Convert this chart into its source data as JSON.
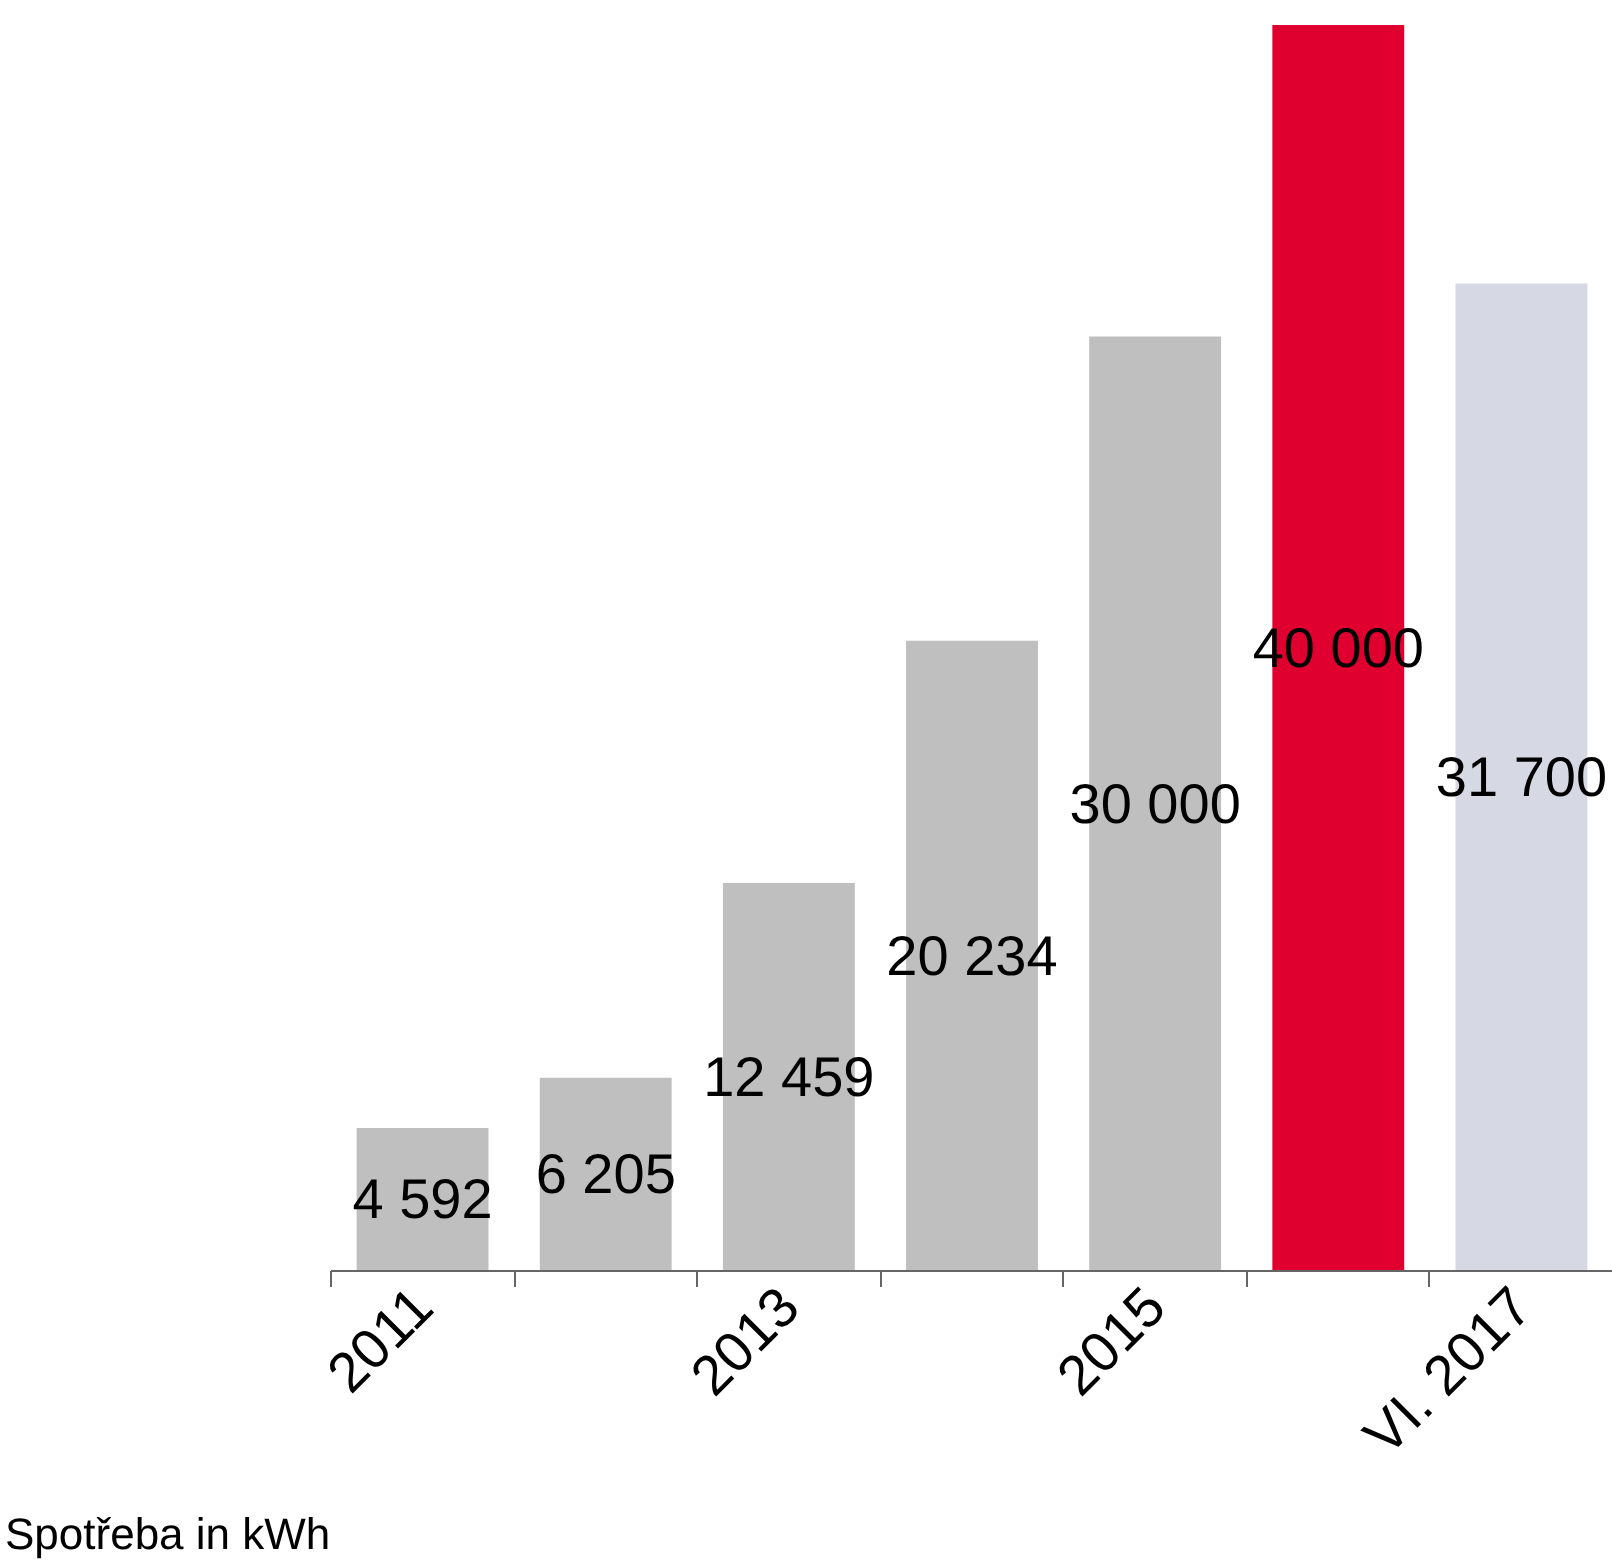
{
  "chart_data": {
    "type": "bar",
    "categories": [
      "2011",
      null,
      "2013",
      null,
      "2015",
      null,
      "VI. 2017"
    ],
    "values": [
      4592,
      6205,
      12459,
      20234,
      30000,
      40000,
      31700
    ],
    "colors": [
      "#bfbfbf",
      "#bfbfbf",
      "#bfbfbf",
      "#bfbfbf",
      "#bfbfbf",
      "#e0002f",
      "#d6d8e3"
    ],
    "value_labels": [
      "4 592",
      "6 205",
      "12 459",
      "20 234",
      "30 000",
      "40 000",
      "31 700"
    ],
    "grid": false,
    "annotations": [
      "Spotřeba in kWh"
    ]
  }
}
